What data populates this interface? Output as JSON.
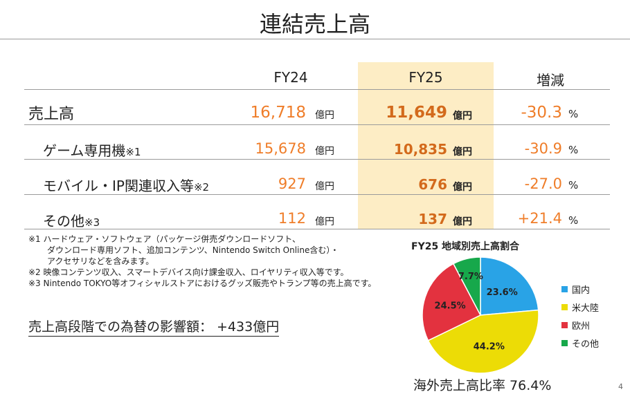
{
  "title": "連結売上高",
  "headers": {
    "fy24": "FY24",
    "fy25": "FY25",
    "change": "増減"
  },
  "units": {
    "oku": "億円",
    "pct": "%"
  },
  "rows": [
    {
      "label": "売上高",
      "note": "",
      "fy24": "16,718",
      "fy25": "11,649",
      "change": "-30.3"
    },
    {
      "label": "ゲーム専用機",
      "note": "※1",
      "fy24": "15,678",
      "fy25": "10,835",
      "change": "-30.9"
    },
    {
      "label": "モバイル・IP関連収入等",
      "note": "※2",
      "fy24": "927",
      "fy25": "676",
      "change": "-27.0"
    },
    {
      "label": "その他",
      "note": "※3",
      "fy24": "112",
      "fy25": "137",
      "change": "+21.4"
    }
  ],
  "footnotes": [
    "※1 ハードウェア・ソフトウェア（パッケージ併売ダウンロードソフト、",
    "ダウンロード専用ソフト、追加コンテンツ、Nintendo Switch Online含む）・",
    "アクセサリなどを含みます。",
    "※2 映像コンテンツ収入、スマートデバイス向け課金収入、ロイヤリティ収入等です。",
    "※3 Nintendo TOKYO等オフィシャルストアにおけるグッズ販売やトランプ等の売上高です。"
  ],
  "fx_impact": "売上高段階での為替の影響額：  +433億円",
  "colors": {
    "accent_orange": "#ef7d29",
    "fy25_band": "#fdedc5"
  },
  "chart_data": {
    "type": "pie",
    "title": "FY25 地域別売上高割合",
    "slices": [
      {
        "label": "国内",
        "value": 23.6,
        "display": "23.6%",
        "color": "#29a3e6"
      },
      {
        "label": "米大陸",
        "value": 44.2,
        "display": "44.2%",
        "color": "#ecdc06"
      },
      {
        "label": "欧州",
        "value": 24.5,
        "display": "24.5%",
        "color": "#e3323f"
      },
      {
        "label": "その他",
        "value": 7.7,
        "display": "7.7%",
        "color": "#17a84b"
      }
    ],
    "legend_position": "right"
  },
  "overseas_ratio": "海外売上高比率 76.4%",
  "page_number": "4"
}
